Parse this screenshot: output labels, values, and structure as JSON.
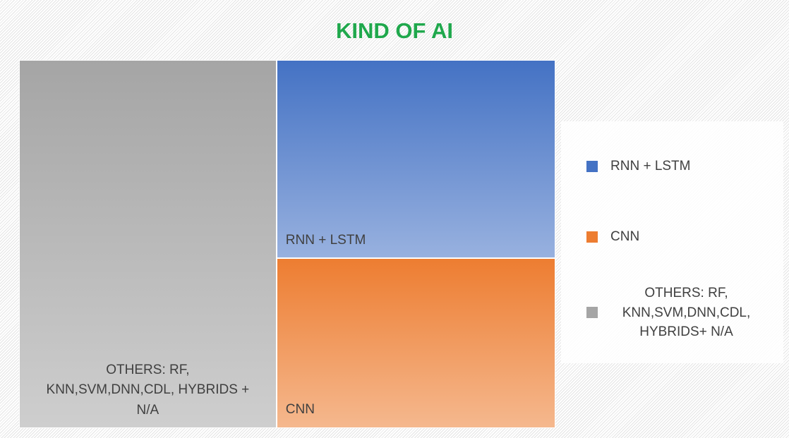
{
  "chart_data": {
    "type": "treemap",
    "title": "KIND OF AI",
    "series": [
      {
        "name": "RNN + LSTM",
        "label": "RNN + LSTM",
        "color": "#4472c4",
        "value": 28
      },
      {
        "name": "CNN",
        "label": "CNN",
        "color": "#ed7d31",
        "value": 24
      },
      {
        "name": "OTHERS: RF, KNN,SVM,DNN,CDL, HYBRIDS+ N/A",
        "label": "OTHERS: RF, KNN,SVM,DNN,CDL, HYBRIDS + N/A",
        "color": "#a5a5a5",
        "value": 48
      }
    ],
    "legend": "right"
  }
}
